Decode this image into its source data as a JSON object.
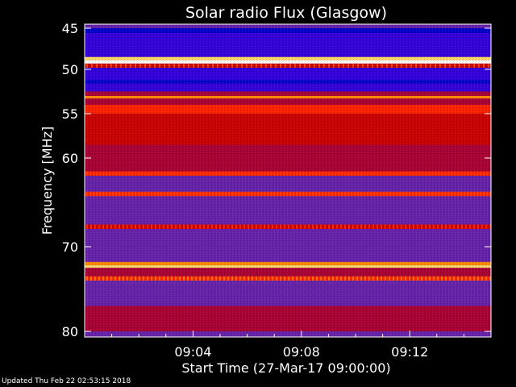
{
  "chart_data": {
    "type": "heatmap",
    "title": "Solar radio Flux (Glasgow)",
    "ylabel": "Frequency [MHz]",
    "xlabel": "Start Time (27-Mar-17 09:00:00)",
    "y_axis": {
      "range_mhz": [
        45,
        80
      ],
      "inverted": true,
      "ticks": [
        "45",
        "50",
        "55",
        "60",
        "70",
        "80"
      ],
      "tick_values": [
        45,
        50,
        55,
        60,
        70,
        80
      ]
    },
    "x_axis": {
      "range_minutes": [
        0,
        15
      ],
      "ticks": [
        "09:04",
        "09:08",
        "09:12"
      ],
      "tick_values": [
        4,
        8,
        12
      ]
    },
    "colormap": [
      "#000000",
      "#0000cc",
      "#3300dd",
      "#6622aa",
      "#aa0033",
      "#cc0000",
      "#ff2200",
      "#ff8800",
      "#ffdd66",
      "#ffffff"
    ],
    "bands": [
      {
        "from_mhz": 45.0,
        "to_mhz": 45.6,
        "level": 1
      },
      {
        "from_mhz": 45.6,
        "to_mhz": 48.5,
        "level": 2
      },
      {
        "from_mhz": 48.5,
        "to_mhz": 48.9,
        "level": 8
      },
      {
        "from_mhz": 48.9,
        "to_mhz": 49.3,
        "level": 9
      },
      {
        "from_mhz": 49.3,
        "to_mhz": 49.8,
        "level": 5
      },
      {
        "from_mhz": 49.8,
        "to_mhz": 51.2,
        "level": 2
      },
      {
        "from_mhz": 51.2,
        "to_mhz": 51.6,
        "level": 1
      },
      {
        "from_mhz": 51.6,
        "to_mhz": 52.5,
        "level": 2
      },
      {
        "from_mhz": 52.5,
        "to_mhz": 53.0,
        "level": 4
      },
      {
        "from_mhz": 53.0,
        "to_mhz": 53.3,
        "level": 7
      },
      {
        "from_mhz": 53.3,
        "to_mhz": 54.0,
        "level": 4
      },
      {
        "from_mhz": 54.0,
        "to_mhz": 55.0,
        "level": 6
      },
      {
        "from_mhz": 55.0,
        "to_mhz": 58.5,
        "level": 5
      },
      {
        "from_mhz": 58.5,
        "to_mhz": 60.0,
        "level": 4
      },
      {
        "from_mhz": 60.0,
        "to_mhz": 61.5,
        "level": 4
      },
      {
        "from_mhz": 61.5,
        "to_mhz": 62.0,
        "level": 6
      },
      {
        "from_mhz": 62.0,
        "to_mhz": 63.8,
        "level": 3
      },
      {
        "from_mhz": 63.8,
        "to_mhz": 64.3,
        "level": 6
      },
      {
        "from_mhz": 64.3,
        "to_mhz": 66.0,
        "level": 3
      },
      {
        "from_mhz": 66.0,
        "to_mhz": 67.5,
        "level": 3
      },
      {
        "from_mhz": 67.5,
        "to_mhz": 68.0,
        "level": 5
      },
      {
        "from_mhz": 68.0,
        "to_mhz": 71.8,
        "level": 3
      },
      {
        "from_mhz": 71.8,
        "to_mhz": 72.2,
        "level": 7
      },
      {
        "from_mhz": 72.2,
        "to_mhz": 72.5,
        "level": 8
      },
      {
        "from_mhz": 72.5,
        "to_mhz": 73.5,
        "level": 4
      },
      {
        "from_mhz": 73.5,
        "to_mhz": 74.0,
        "level": 6
      },
      {
        "from_mhz": 74.0,
        "to_mhz": 77.0,
        "level": 3
      },
      {
        "from_mhz": 77.0,
        "to_mhz": 80.0,
        "level": 4
      }
    ]
  },
  "footer": {
    "updated": "Updated Thu Feb 22 02:53:15 2018"
  }
}
